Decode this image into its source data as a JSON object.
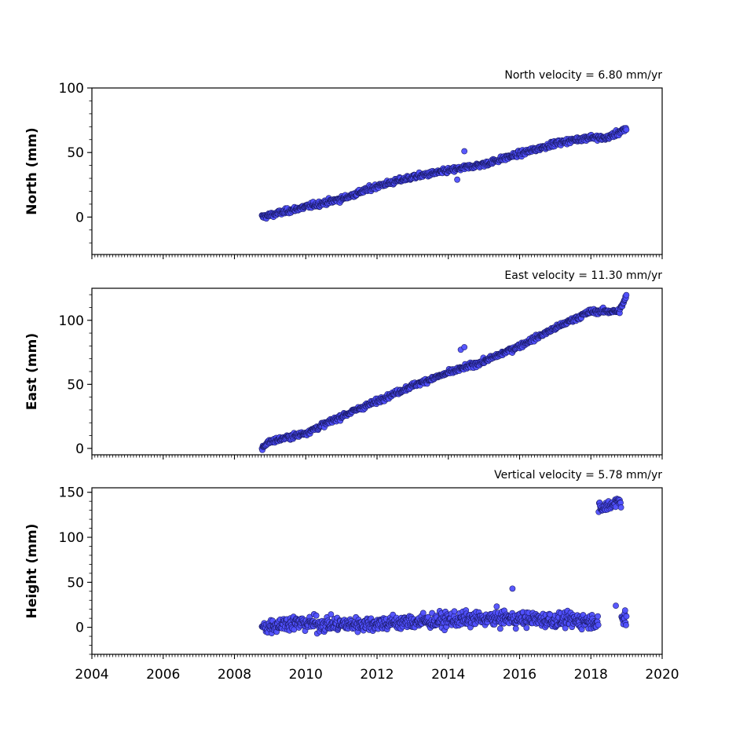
{
  "chart_data": {
    "type": "scatter",
    "point_color": "#5050ff",
    "edge_color": "#1a1a66",
    "x_range": [
      2004,
      2020
    ],
    "x_ticks": [
      "2004",
      "2006",
      "2008",
      "2010",
      "2012",
      "2014",
      "2016",
      "2018",
      "2020"
    ],
    "start": 2008.77,
    "end": 2019.0,
    "panels": [
      {
        "ylabel": "North (mm)",
        "velocity_label": "North velocity = 6.80 mm/yr",
        "ylim": [
          -29,
          100
        ],
        "y_ticks": [
          "0",
          "50",
          "100"
        ],
        "trend": [
          [
            2008.77,
            0
          ],
          [
            2010,
            8
          ],
          [
            2011,
            14
          ],
          [
            2012,
            24
          ],
          [
            2013,
            31
          ],
          [
            2014,
            36
          ],
          [
            2015,
            41
          ],
          [
            2016,
            49
          ],
          [
            2017,
            57
          ],
          [
            2018,
            62
          ],
          [
            2018.4,
            61
          ],
          [
            2019.0,
            68
          ]
        ],
        "noise": 1.7,
        "outliers": [
          [
            2014.45,
            51
          ],
          [
            2014.25,
            29
          ]
        ]
      },
      {
        "ylabel": "East (mm)",
        "velocity_label": "East velocity = 11.30 mm/yr",
        "ylim": [
          -5,
          125
        ],
        "y_ticks": [
          "0",
          "50",
          "100"
        ],
        "trend": [
          [
            2008.77,
            0
          ],
          [
            2008.95,
            5
          ],
          [
            2010,
            12
          ],
          [
            2011,
            25
          ],
          [
            2012,
            37
          ],
          [
            2013,
            49
          ],
          [
            2014,
            59
          ],
          [
            2015,
            68
          ],
          [
            2016,
            80
          ],
          [
            2017,
            94
          ],
          [
            2018,
            107
          ],
          [
            2018.8,
            107
          ],
          [
            2019.0,
            119
          ]
        ],
        "noise": 1.6,
        "outliers": [
          [
            2014.35,
            77
          ],
          [
            2014.45,
            79
          ]
        ]
      },
      {
        "ylabel": "Height (mm)",
        "velocity_label": "Vertical velocity = 5.78 mm/yr",
        "ylim": [
          -30,
          155
        ],
        "y_ticks": [
          "0",
          "50",
          "100",
          "150"
        ],
        "trend": [
          [
            2008.77,
            0
          ],
          [
            2009.5,
            5
          ],
          [
            2011,
            3
          ],
          [
            2012.5,
            5
          ],
          [
            2014,
            8
          ],
          [
            2015.5,
            10
          ],
          [
            2017,
            8
          ],
          [
            2018.2,
            7
          ]
        ],
        "noise": 7,
        "jump": {
          "start": 2018.22,
          "end": 2018.85,
          "values": [
            [
              2018.22,
              130
            ],
            [
              2018.85,
              142
            ]
          ],
          "noise": 6
        },
        "tail": {
          "start": 2018.86,
          "end": 2019.0,
          "level": 10,
          "noise": 7
        },
        "outliers": [
          [
            2015.8,
            43
          ],
          [
            2018.7,
            24
          ]
        ]
      }
    ]
  }
}
